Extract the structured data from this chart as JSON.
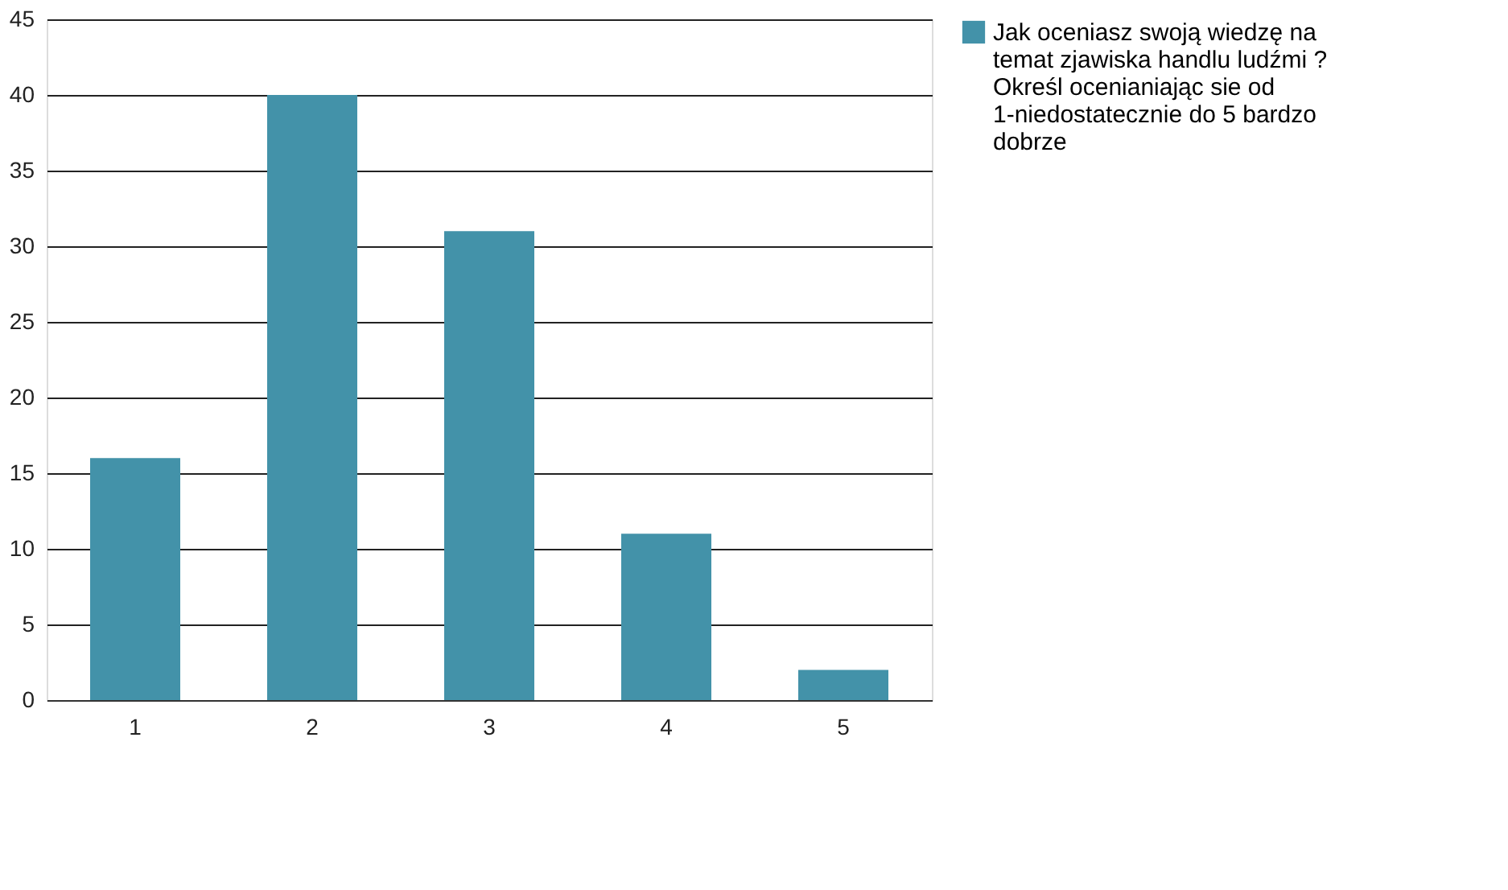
{
  "chart_data": {
    "type": "bar",
    "categories": [
      "1",
      "2",
      "3",
      "4",
      "5"
    ],
    "series": [
      {
        "name": "Jak oceniasz swoją wiedzę na temat zjawiska handlu ludźmi ? Określ ocenianiając sie od 1-niedostatecznie do 5 bardzo dobrze",
        "color": "#4392a9",
        "values": [
          16,
          40,
          31,
          11,
          2
        ]
      }
    ],
    "ylim": [
      0,
      45
    ],
    "yticks": [
      0,
      5,
      10,
      15,
      20,
      25,
      30,
      35,
      40,
      45
    ],
    "grid": "y",
    "legend": "right"
  }
}
